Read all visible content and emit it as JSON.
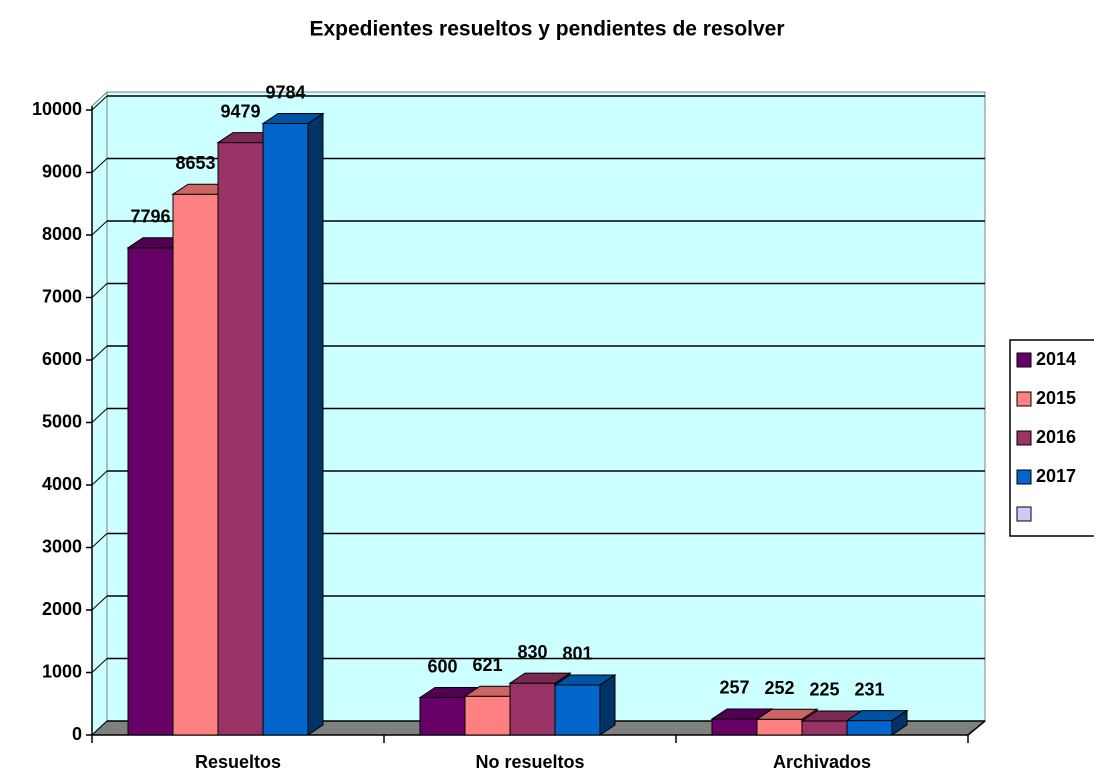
{
  "chart_data": {
    "type": "bar3d",
    "title": "Expedientes resueltos y pendientes de resolver",
    "categories": [
      "Resueltos",
      "No resueltos",
      "Archivados"
    ],
    "series": [
      {
        "name": "2014",
        "color": "#660066",
        "values": [
          7796,
          600,
          257
        ]
      },
      {
        "name": "2015",
        "color": "#ff8080",
        "values": [
          8653,
          621,
          252
        ]
      },
      {
        "name": "2016",
        "color": "#993366",
        "values": [
          9479,
          830,
          225
        ]
      },
      {
        "name": "2017",
        "color": "#0066cc",
        "values": [
          9784,
          801,
          231
        ]
      }
    ],
    "ylim": [
      0,
      10000
    ],
    "yticks": [
      0,
      1000,
      2000,
      3000,
      4000,
      5000,
      6000,
      7000,
      8000,
      9000,
      10000
    ],
    "grid": true,
    "legend": "right"
  }
}
